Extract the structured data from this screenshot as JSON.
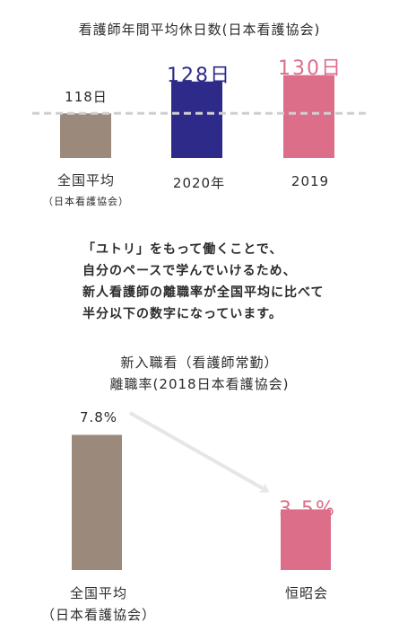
{
  "chart1": {
    "title": "看護師年間平均休日数(日本看護協会)",
    "bars": [
      {
        "label": "全国平均",
        "sublabel": "（日本看護協会）",
        "value_label": "118日",
        "value": 118,
        "color": "#9b8a7b"
      },
      {
        "label": "2020年",
        "sublabel": "",
        "value_label": "128日",
        "value": 128,
        "color": "#2e2a8a"
      },
      {
        "label": "2019",
        "sublabel": "",
        "value_label": "130日",
        "value": 130,
        "color": "#dd6e8a"
      }
    ]
  },
  "paragraph": {
    "lines": [
      "「ユトリ」をもって働くことで、",
      "自分のペースで学んでいけるため、",
      "新人看護師の離職率が全国平均に比べて",
      "半分以下の数字になっています。"
    ]
  },
  "chart2": {
    "title_line1": "新入職看（看護師常勤）",
    "title_line2": "離職率(2018日本看護協会)",
    "bars": [
      {
        "label": "全国平均",
        "sublabel": "（日本看護協会）",
        "value_label": "7.8%",
        "value": 7.8,
        "color": "#9b8a7b"
      },
      {
        "label": "恒昭会",
        "sublabel": "",
        "value_label": "3.5%",
        "value": 3.5,
        "color": "#dd6e8a"
      }
    ]
  },
  "chart_data": [
    {
      "type": "bar",
      "title": "看護師年間平均休日数(日本看護協会)",
      "categories": [
        "全国平均",
        "2020年",
        "2019"
      ],
      "values": [
        118,
        128,
        130
      ],
      "unit": "日",
      "reference_line": 118
    },
    {
      "type": "bar",
      "title": "新入職看（看護師常勤）離職率(2018日本看護協会)",
      "categories": [
        "全国平均",
        "恒昭会"
      ],
      "values": [
        7.8,
        3.5
      ],
      "unit": "%"
    }
  ]
}
